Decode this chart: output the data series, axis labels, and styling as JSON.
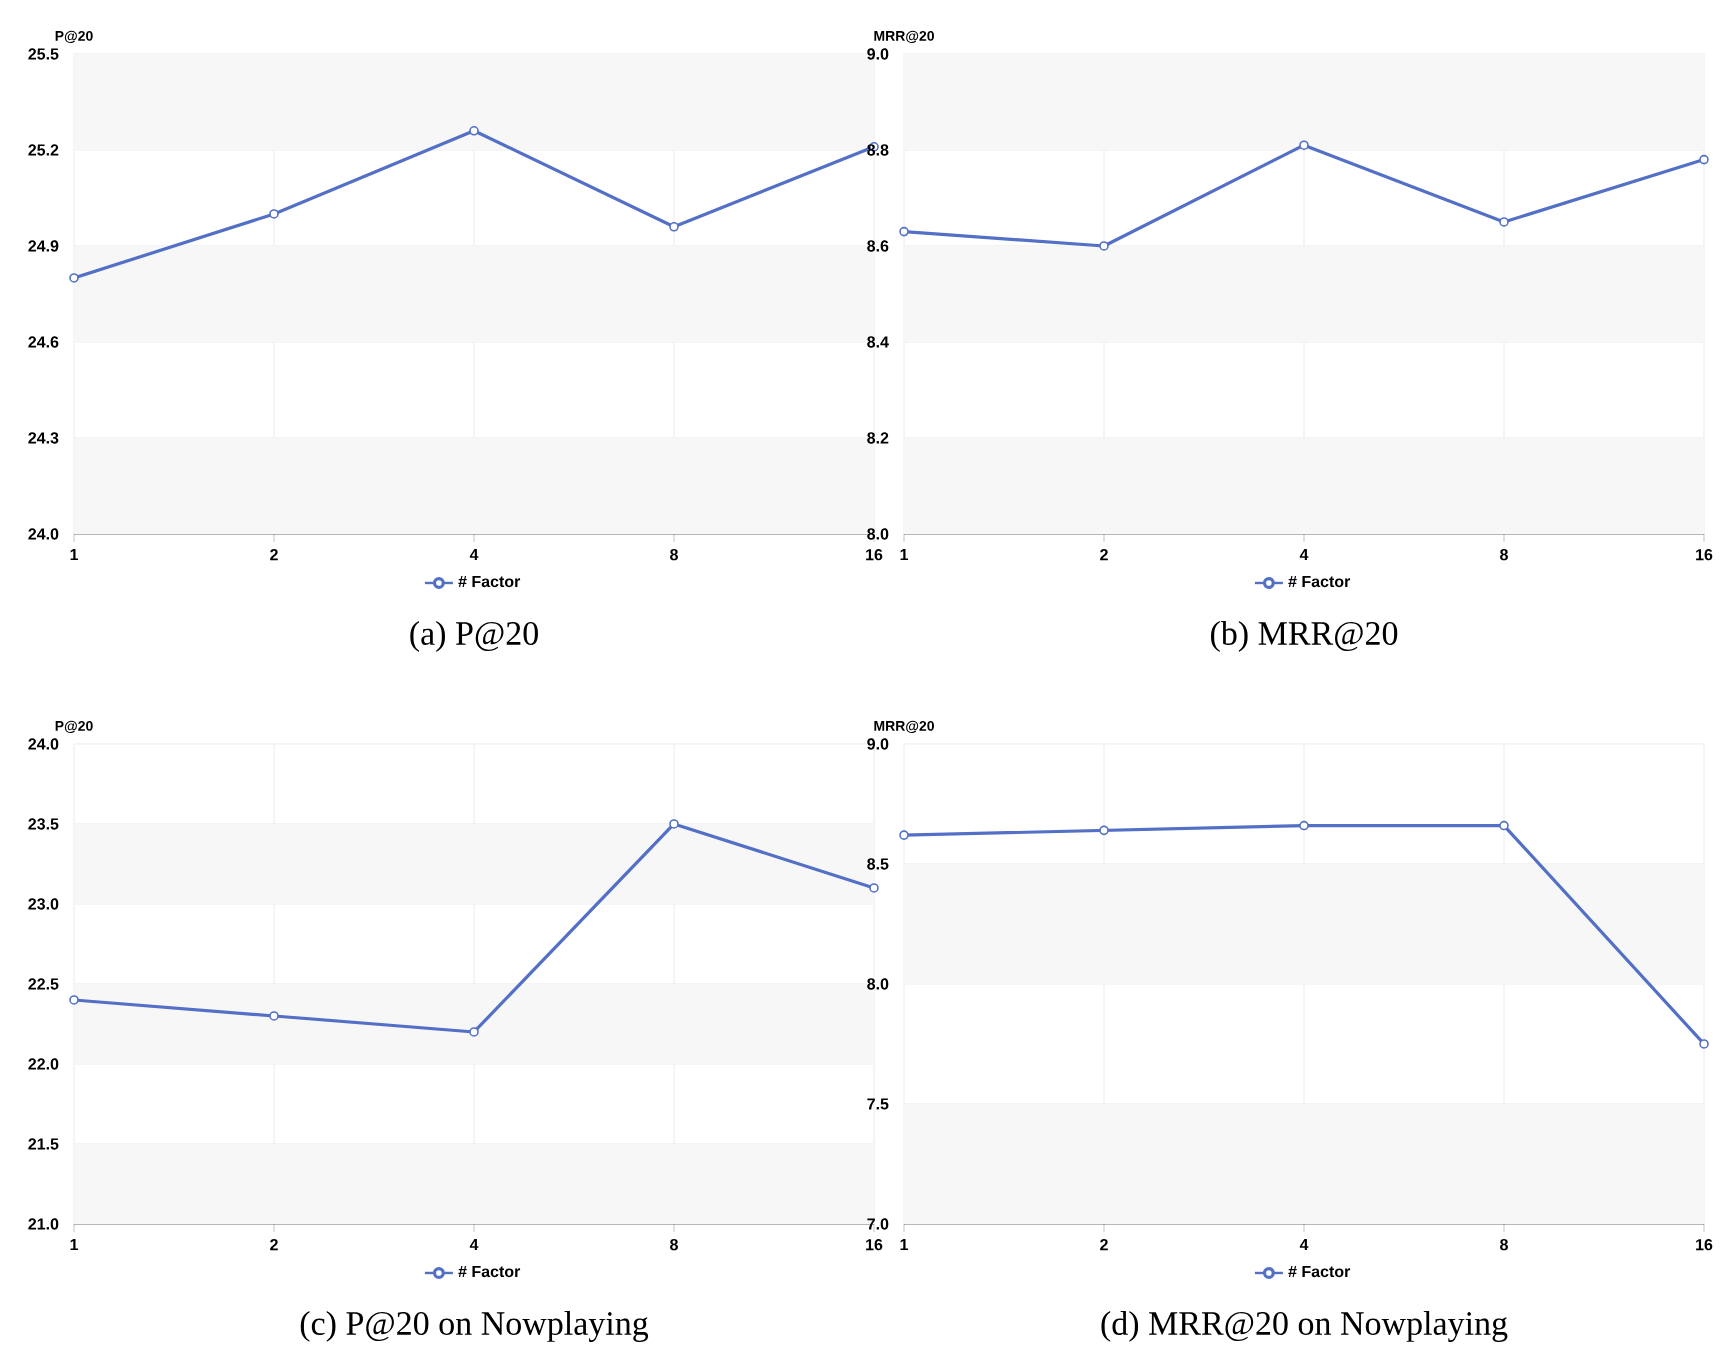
{
  "chart_data": [
    {
      "type": "line",
      "title": "(a) P@20",
      "ylabel": "P@20",
      "categories": [
        "1",
        "2",
        "4",
        "8",
        "16"
      ],
      "series": [
        {
          "name": "# Factor",
          "color": "#5470c6",
          "values": [
            24.8,
            25.0,
            25.26,
            24.96,
            25.21
          ]
        }
      ],
      "ylim": [
        24.0,
        25.5
      ],
      "yticks": [
        {
          "value": 24.0,
          "label": "24.0"
        },
        24.3,
        24.6,
        24.9,
        25.2,
        25.5
      ],
      "grid": true,
      "legend": "bottom",
      "marker": "circle",
      "line_style": "solid"
    },
    {
      "type": "line",
      "title": "(b) MRR@20",
      "ylabel": "MRR@20",
      "categories": [
        "1",
        "2",
        "4",
        "8",
        "16"
      ],
      "series": [
        {
          "name": "# Factor",
          "color": "#5470c6",
          "values": [
            8.63,
            8.6,
            8.81,
            8.65,
            8.78
          ]
        }
      ],
      "ylim": [
        8.0,
        9.0
      ],
      "yticks": [
        {
          "value": 8.0,
          "label": "8.0"
        },
        8.2,
        8.4,
        8.6,
        8.8,
        {
          "value": 9.0,
          "label": "9.0"
        }
      ],
      "grid": true,
      "legend": "bottom",
      "marker": "circle",
      "line_style": "solid"
    },
    {
      "type": "line",
      "title": "(c) P@20 on Nowplaying",
      "ylabel": "P@20",
      "categories": [
        "1",
        "2",
        "4",
        "8",
        "16"
      ],
      "series": [
        {
          "name": "# Factor",
          "color": "#5470c6",
          "values": [
            22.4,
            22.3,
            22.2,
            23.5,
            23.1
          ]
        }
      ],
      "ylim": [
        21.0,
        24.0
      ],
      "yticks": [
        {
          "value": 21.0,
          "label": "21.0"
        },
        21.5,
        {
          "value": 22.0,
          "label": "22.0"
        },
        22.5,
        {
          "value": 23.0,
          "label": "23.0"
        },
        23.5,
        {
          "value": 24.0,
          "label": "24.0"
        }
      ],
      "grid": true,
      "legend": "bottom",
      "marker": "circle",
      "line_style": "solid"
    },
    {
      "type": "line",
      "title": "(d) MRR@20 on Nowplaying",
      "ylabel": "MRR@20",
      "categories": [
        "1",
        "2",
        "4",
        "8",
        "16"
      ],
      "series": [
        {
          "name": "# Factor",
          "color": "#5470c6",
          "values": [
            8.62,
            8.64,
            8.66,
            8.66,
            7.75
          ]
        }
      ],
      "ylim": [
        7.0,
        9.0
      ],
      "yticks": [
        {
          "value": 7.0,
          "label": "7.0"
        },
        7.5,
        {
          "value": 8.0,
          "label": "8.0"
        },
        8.5,
        {
          "value": 9.0,
          "label": "9.0"
        }
      ],
      "grid": true,
      "legend": "bottom",
      "marker": "circle",
      "line_style": "solid"
    }
  ]
}
